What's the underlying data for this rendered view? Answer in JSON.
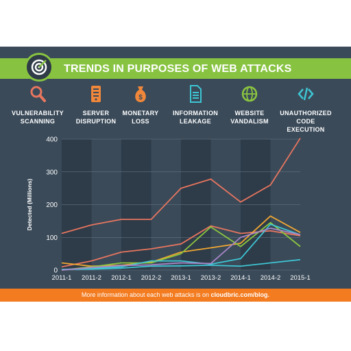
{
  "header": {
    "title": "TRENDS IN PURPOSES OF WEB ATTACKS"
  },
  "categories": [
    {
      "label_line1": "VULNERABILITY",
      "label_line2": "SCANNING",
      "icon": "magnifier-icon",
      "color": "#e8765f"
    },
    {
      "label_line1": "SERVER",
      "label_line2": "DISRUPTION",
      "icon": "server-icon",
      "color": "#f0873a"
    },
    {
      "label_line1": "MONETARY",
      "label_line2": "LOSS",
      "icon": "money-bag-icon",
      "color": "#f0873a"
    },
    {
      "label_line1": "INFORMATION",
      "label_line2": "LEAKAGE",
      "icon": "document-icon",
      "color": "#3ec6d4"
    },
    {
      "label_line1": "WEBSITE",
      "label_line2": "VANDALISM",
      "icon": "globe-icon",
      "color": "#8cc63f"
    },
    {
      "label_line1": "UNAUTHORIZED",
      "label_line2": "CODE EXECUTION",
      "icon": "code-icon",
      "color": "#3ec6d4"
    }
  ],
  "footer": {
    "text": "More information about each web attacks is on",
    "link": "cloudbric.com/blog."
  },
  "chart_data": {
    "type": "line",
    "x": [
      "2011-1",
      "2011-2",
      "2012-1",
      "2012-2",
      "2013-1",
      "2013-2",
      "2014-1",
      "2014-2",
      "2015-1"
    ],
    "ylabel": "Detected (Millions)",
    "ylim": [
      0,
      400
    ],
    "yticks": [
      0,
      100,
      200,
      300,
      400
    ],
    "grid": true,
    "series": [
      {
        "color": "#e8765f",
        "values": [
          112,
          138,
          155,
          155,
          250,
          278,
          208,
          260,
          403
        ]
      },
      {
        "color": "#e8765f",
        "values": [
          10,
          28,
          55,
          65,
          80,
          135,
          112,
          120,
          105
        ]
      },
      {
        "color": "#f0a732",
        "values": [
          22,
          12,
          15,
          24,
          55,
          68,
          82,
          165,
          115
        ]
      },
      {
        "color": "#8cc63f",
        "values": [
          0,
          10,
          22,
          22,
          50,
          132,
          72,
          145,
          72
        ]
      },
      {
        "color": "#3ec6d4",
        "values": [
          2,
          5,
          10,
          28,
          28,
          18,
          35,
          140,
          108
        ]
      },
      {
        "color": "#3ec6d4",
        "values": [
          2,
          3,
          6,
          12,
          13,
          15,
          12,
          22,
          32
        ]
      },
      {
        "color": "#a986c8",
        "values": [
          0,
          8,
          14,
          16,
          22,
          20,
          100,
          128,
          108
        ]
      }
    ]
  }
}
